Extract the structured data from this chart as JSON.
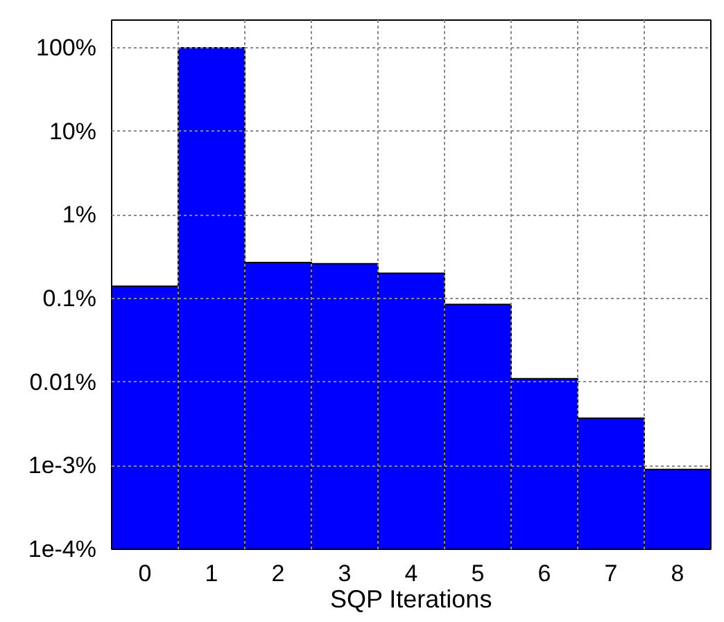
{
  "chart_data": {
    "type": "bar",
    "xlabel": "SQP Iterations",
    "categories": [
      "0",
      "1",
      "2",
      "3",
      "4",
      "5",
      "6",
      "7",
      "8"
    ],
    "values": [
      0.14,
      100,
      0.27,
      0.26,
      0.2,
      0.085,
      0.011,
      0.0037,
      0.0009
    ],
    "color": "#0000ff",
    "log": true,
    "ylim": [
      0.0001,
      214
    ],
    "yticks": [
      {
        "value": 0.0001,
        "label": "1e-4%"
      },
      {
        "value": 0.001,
        "label": "1e-3%"
      },
      {
        "value": 0.01,
        "label": "0.01%"
      },
      {
        "value": 0.1,
        "label": "0.1%"
      },
      {
        "value": 1,
        "label": "1%"
      },
      {
        "value": 10,
        "label": "10%"
      },
      {
        "value": 100,
        "label": "100%"
      }
    ],
    "grid": true
  }
}
